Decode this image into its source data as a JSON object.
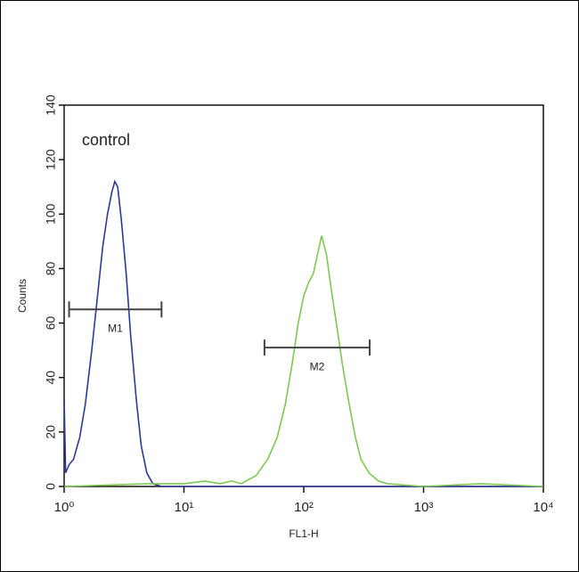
{
  "chart_data": {
    "type": "line",
    "x_label": "FL1-H",
    "y_label": "Counts",
    "annotation": "control",
    "xscale": "log",
    "xlim": [
      1,
      10000
    ],
    "xticks": [
      {
        "value": 1,
        "label": "10⁰"
      },
      {
        "value": 10,
        "label": "10¹"
      },
      {
        "value": 100,
        "label": "10²"
      },
      {
        "value": 1000,
        "label": "10³"
      },
      {
        "value": 10000,
        "label": "10⁴"
      }
    ],
    "ylim": [
      0,
      140
    ],
    "yticks": [
      0,
      20,
      40,
      60,
      80,
      100,
      120,
      140
    ],
    "series": [
      {
        "color": "#2b3a98",
        "x": [
          1.0,
          1.03,
          1.1,
          1.2,
          1.35,
          1.5,
          1.7,
          1.9,
          2.1,
          2.3,
          2.5,
          2.65,
          2.8,
          3.0,
          3.3,
          3.6,
          4.0,
          4.4,
          4.9,
          5.5,
          6.5,
          10,
          100,
          1000,
          10000
        ],
        "values": [
          32,
          5,
          8,
          10,
          18,
          30,
          50,
          70,
          88,
          100,
          108,
          112,
          110,
          98,
          78,
          55,
          32,
          15,
          5,
          1,
          0,
          0,
          0,
          0,
          0
        ]
      },
      {
        "color": "#7ec850",
        "x": [
          1,
          5,
          10,
          15,
          20,
          25,
          30,
          40,
          50,
          60,
          70,
          80,
          90,
          100,
          110,
          120,
          130,
          141,
          155,
          170,
          190,
          210,
          240,
          270,
          300,
          350,
          420,
          500,
          1000,
          3000,
          10000
        ],
        "values": [
          0,
          1,
          1,
          2,
          1,
          2,
          1,
          4,
          10,
          18,
          30,
          45,
          60,
          70,
          75,
          78,
          85,
          92,
          85,
          72,
          58,
          45,
          30,
          18,
          10,
          5,
          2,
          1,
          0,
          1,
          0
        ]
      }
    ],
    "markers": [
      {
        "label": "M1",
        "range": [
          1.1,
          6.5
        ],
        "level": 65
      },
      {
        "label": "M2",
        "range": [
          47,
          355
        ],
        "level": 51
      }
    ]
  }
}
